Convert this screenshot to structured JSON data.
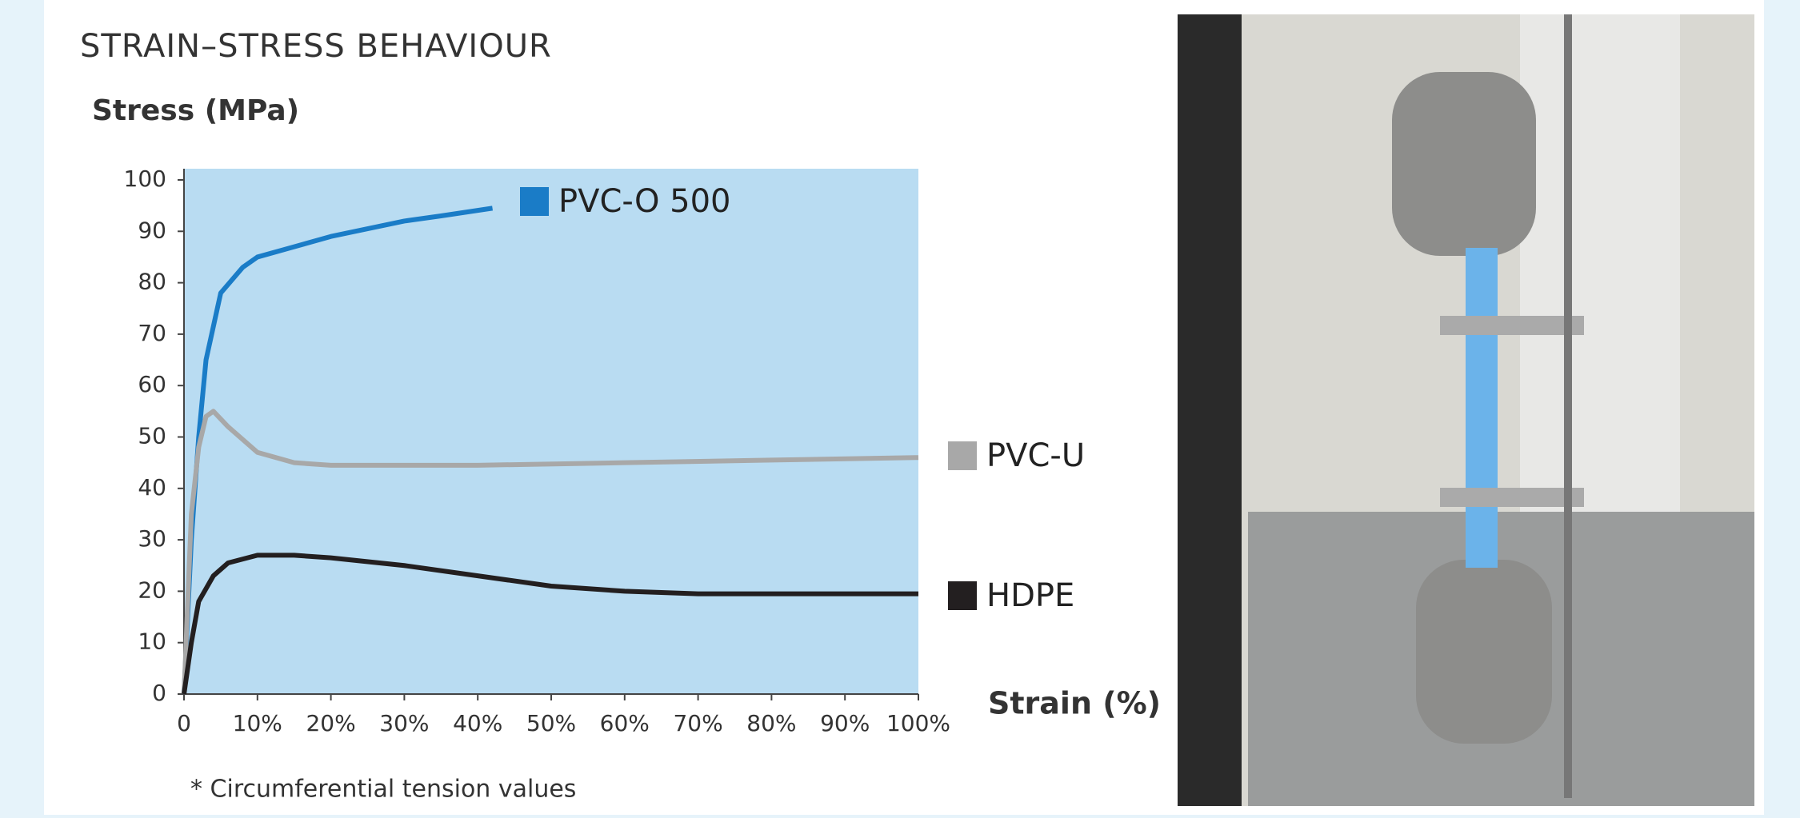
{
  "chart_data": {
    "type": "line",
    "title": "STRAIN–STRESS BEHAVIOUR",
    "y_label": "Stress (MPa)",
    "x_label": "Strain (%)",
    "note": "* Circumferential tension values",
    "xlim": [
      0,
      100
    ],
    "ylim": [
      0,
      100
    ],
    "xticks": [
      0,
      {
        "value": 10,
        "label": "10%"
      },
      {
        "value": 20,
        "label": "20%"
      },
      {
        "value": 30,
        "label": "30%"
      },
      {
        "value": 40,
        "label": "40%"
      },
      {
        "value": 50,
        "label": "50%"
      },
      {
        "value": 60,
        "label": "60%"
      },
      {
        "value": 70,
        "label": "70%"
      },
      {
        "value": 80,
        "label": "80%"
      },
      {
        "value": 90,
        "label": "90%"
      },
      {
        "value": 100,
        "label": "100%"
      }
    ],
    "yticks": [
      0,
      10,
      20,
      30,
      40,
      50,
      60,
      70,
      80,
      90,
      100
    ],
    "plot_background": "#b9dcf2",
    "series": [
      {
        "name": "PVC-O 500",
        "color": "#1a7cc7",
        "x": [
          0,
          1,
          2,
          3,
          5,
          8,
          10,
          15,
          20,
          30,
          35,
          42
        ],
        "values": [
          0,
          30,
          50,
          65,
          78,
          83,
          85,
          87,
          89,
          92,
          93,
          94.5
        ]
      },
      {
        "name": "PVC-U",
        "color": "#a8a8a8",
        "x": [
          0,
          1,
          2,
          3,
          4,
          6,
          10,
          15,
          20,
          30,
          40,
          60,
          80,
          100
        ],
        "values": [
          0,
          35,
          48,
          54,
          55,
          52,
          47,
          45,
          44.5,
          44.5,
          44.5,
          45,
          45.5,
          46
        ]
      },
      {
        "name": "HDPE",
        "color": "#231f20",
        "x": [
          0,
          1,
          2,
          4,
          6,
          10,
          15,
          20,
          30,
          40,
          50,
          60,
          70,
          80,
          90,
          100
        ],
        "values": [
          0,
          10,
          18,
          23,
          25.5,
          27,
          27,
          26.5,
          25,
          23,
          21,
          20,
          19.5,
          19.5,
          19.5,
          19.5
        ]
      }
    ]
  }
}
